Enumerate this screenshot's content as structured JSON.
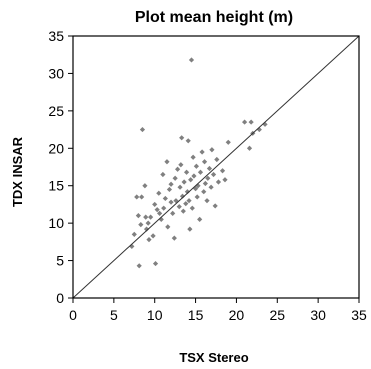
{
  "chart_data": {
    "type": "scatter",
    "title": "Plot mean height (m)",
    "xlabel": "TSX Stereo",
    "ylabel": "TDX INSAR",
    "xlim": [
      0,
      35
    ],
    "ylim": [
      0,
      35
    ],
    "xticks": [
      0,
      5,
      10,
      15,
      20,
      25,
      30,
      35
    ],
    "yticks": [
      0,
      5,
      10,
      15,
      20,
      25,
      30,
      35
    ],
    "grid": false,
    "reference_line": "1:1",
    "colors": {
      "points": "#808080",
      "line": "#333333",
      "axis": "#000000"
    },
    "series": [
      {
        "points": [
          [
            7.2,
            6.9
          ],
          [
            7.5,
            8.5
          ],
          [
            7.8,
            13.5
          ],
          [
            8.0,
            11.0
          ],
          [
            8.1,
            4.3
          ],
          [
            8.3,
            9.8
          ],
          [
            8.4,
            13.5
          ],
          [
            8.5,
            22.5
          ],
          [
            8.8,
            15.0
          ],
          [
            8.9,
            10.8
          ],
          [
            9.0,
            9.2
          ],
          [
            9.2,
            10.0
          ],
          [
            9.3,
            7.8
          ],
          [
            9.5,
            10.8
          ],
          [
            9.8,
            8.3
          ],
          [
            10.0,
            12.5
          ],
          [
            10.1,
            4.6
          ],
          [
            10.3,
            11.8
          ],
          [
            10.5,
            14.0
          ],
          [
            10.6,
            11.3
          ],
          [
            10.8,
            10.5
          ],
          [
            11.0,
            16.5
          ],
          [
            11.1,
            12.0
          ],
          [
            11.3,
            13.3
          ],
          [
            11.5,
            18.2
          ],
          [
            11.6,
            9.5
          ],
          [
            11.8,
            14.5
          ],
          [
            12.0,
            12.8
          ],
          [
            12.0,
            15.2
          ],
          [
            12.2,
            11.3
          ],
          [
            12.4,
            8.0
          ],
          [
            12.5,
            16.0
          ],
          [
            12.6,
            13.0
          ],
          [
            12.8,
            17.2
          ],
          [
            13.0,
            12.2
          ],
          [
            13.1,
            14.8
          ],
          [
            13.2,
            17.8
          ],
          [
            13.3,
            21.4
          ],
          [
            13.4,
            13.6
          ],
          [
            13.5,
            11.6
          ],
          [
            13.6,
            15.5
          ],
          [
            13.8,
            12.6
          ],
          [
            13.9,
            16.8
          ],
          [
            14.0,
            14.2
          ],
          [
            14.1,
            21.0
          ],
          [
            14.2,
            13.0
          ],
          [
            14.3,
            9.2
          ],
          [
            14.4,
            15.8
          ],
          [
            14.5,
            31.8
          ],
          [
            14.6,
            12.0
          ],
          [
            14.7,
            18.8
          ],
          [
            14.8,
            16.3
          ],
          [
            15.0,
            14.6
          ],
          [
            15.1,
            17.6
          ],
          [
            15.2,
            13.5
          ],
          [
            15.3,
            15.0
          ],
          [
            15.5,
            10.5
          ],
          [
            15.6,
            16.8
          ],
          [
            15.8,
            19.5
          ],
          [
            16.0,
            14.2
          ],
          [
            16.1,
            18.2
          ],
          [
            16.2,
            15.3
          ],
          [
            16.4,
            13.0
          ],
          [
            16.5,
            16.0
          ],
          [
            16.7,
            17.3
          ],
          [
            16.9,
            14.8
          ],
          [
            17.0,
            19.8
          ],
          [
            17.2,
            16.5
          ],
          [
            17.4,
            12.3
          ],
          [
            17.6,
            18.5
          ],
          [
            17.8,
            15.5
          ],
          [
            18.3,
            17.0
          ],
          [
            18.6,
            15.8
          ],
          [
            19.0,
            20.8
          ],
          [
            21.0,
            23.5
          ],
          [
            21.6,
            20.0
          ],
          [
            21.8,
            23.5
          ],
          [
            22.0,
            22.0
          ],
          [
            22.8,
            22.5
          ],
          [
            23.5,
            23.2
          ]
        ]
      }
    ]
  }
}
